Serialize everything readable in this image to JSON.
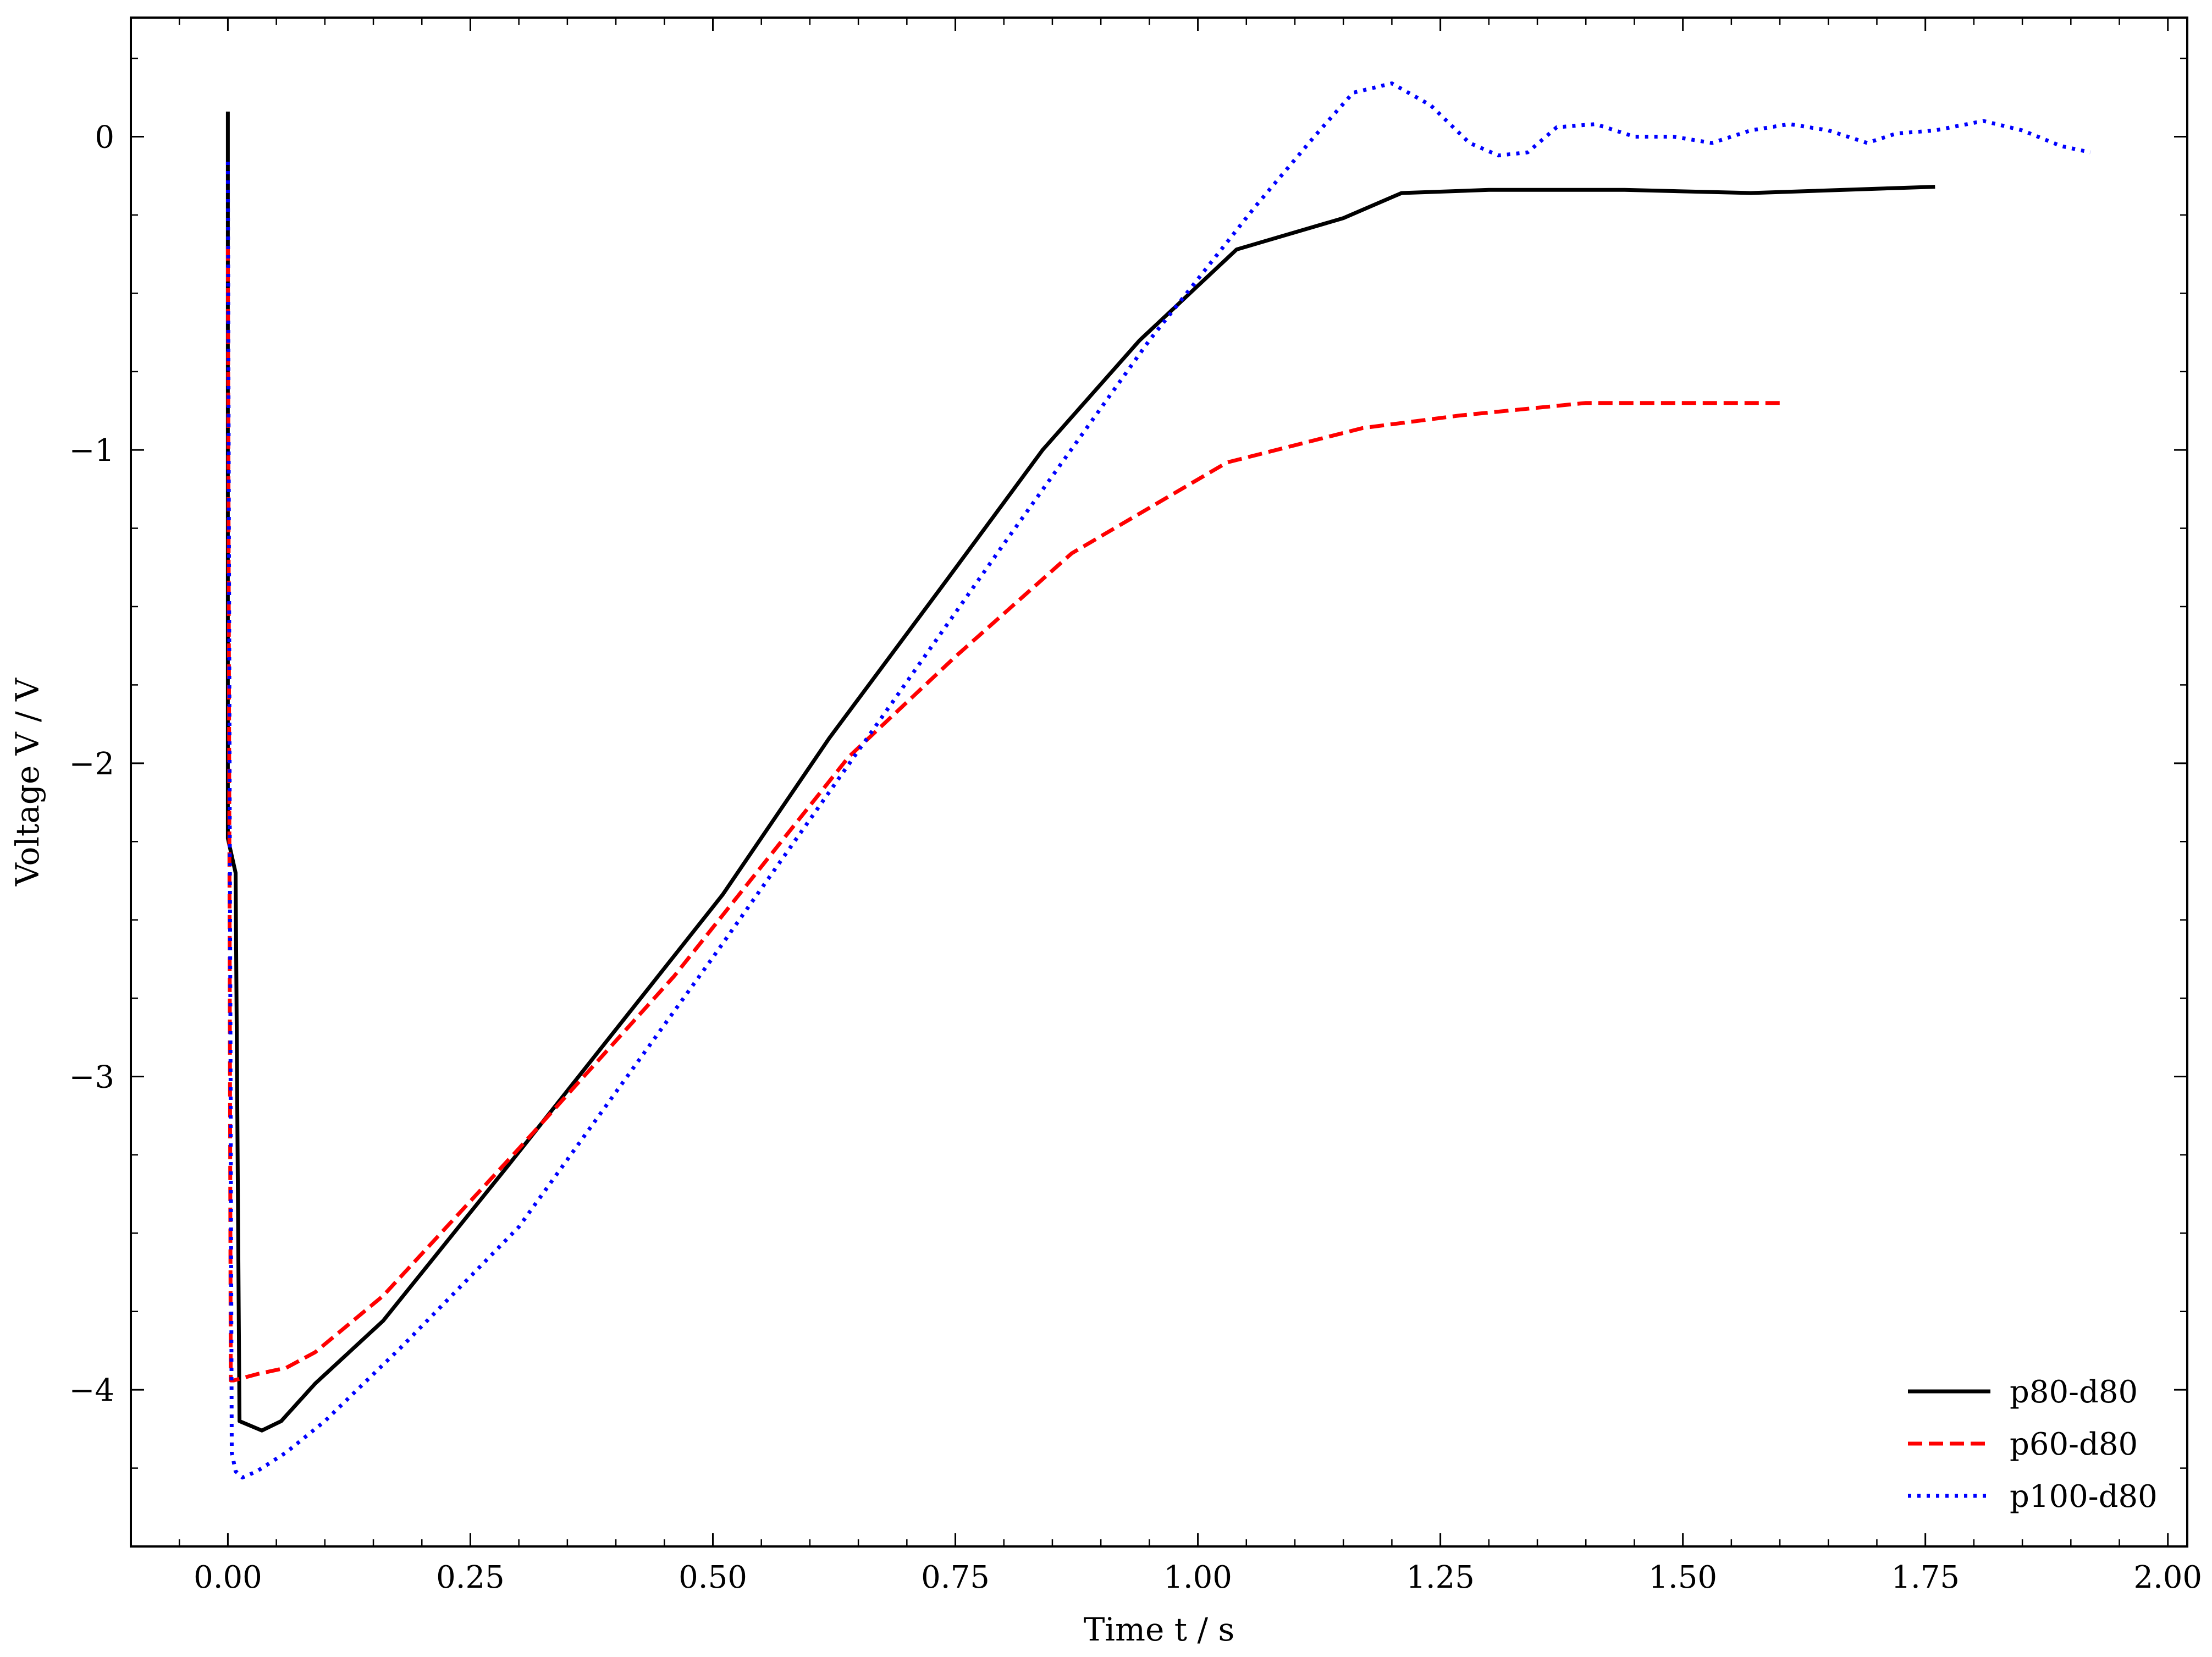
{
  "chart_data": {
    "type": "line",
    "xlabel": "Time t / s",
    "ylabel": "Voltage V / V",
    "xlim": [
      -0.1,
      2.02
    ],
    "ylim": [
      -4.5,
      0.38
    ],
    "xticks": [
      0.0,
      0.25,
      0.5,
      0.75,
      1.0,
      1.25,
      1.5,
      1.75,
      2.0
    ],
    "xtick_labels": [
      "0.00",
      "0.25",
      "0.50",
      "0.75",
      "1.00",
      "1.25",
      "1.50",
      "1.75",
      "2.00"
    ],
    "yticks": [
      0,
      -1,
      -2,
      -3,
      -4
    ],
    "ytick_labels": [
      "0",
      "−1",
      "−2",
      "−3",
      "−4"
    ],
    "grid": false,
    "legend_position": "bottom-right",
    "series": [
      {
        "name": "p80-d80",
        "color": "#000000",
        "dash": "solid",
        "x": [
          0.0,
          0.0,
          0.008,
          0.012,
          0.035,
          0.055,
          0.09,
          0.16,
          0.29,
          0.51,
          0.62,
          0.74,
          0.84,
          0.94,
          1.04,
          1.15,
          1.21,
          1.3,
          1.44,
          1.57,
          1.76
        ],
        "y": [
          0.08,
          -2.24,
          -2.35,
          -4.1,
          -4.13,
          -4.1,
          -3.98,
          -3.78,
          -3.28,
          -2.42,
          -1.92,
          -1.42,
          -1.0,
          -0.65,
          -0.36,
          -0.26,
          -0.18,
          -0.17,
          -0.17,
          -0.18,
          -0.16
        ]
      },
      {
        "name": "p60-d80",
        "color": "#ff0000",
        "dash": "dashed",
        "x": [
          0.0,
          0.003,
          0.006,
          0.03,
          0.06,
          0.09,
          0.16,
          0.3,
          0.46,
          0.64,
          0.75,
          0.87,
          1.03,
          1.17,
          1.27,
          1.4,
          1.5,
          1.6
        ],
        "y": [
          -0.35,
          -3.97,
          -3.97,
          -3.95,
          -3.93,
          -3.88,
          -3.7,
          -3.23,
          -2.68,
          -1.98,
          -1.66,
          -1.33,
          -1.04,
          -0.93,
          -0.89,
          -0.85,
          -0.85,
          -0.85
        ]
      },
      {
        "name": "p100-d80",
        "color": "#0000ff",
        "dash": "dotted",
        "x": [
          0.0,
          0.002,
          0.004,
          0.008,
          0.015,
          0.03,
          0.06,
          0.1,
          0.18,
          0.3,
          0.5,
          0.65,
          0.8,
          0.95,
          1.06,
          1.12,
          1.16,
          1.2,
          1.24,
          1.28,
          1.31,
          1.34,
          1.37,
          1.41,
          1.45,
          1.49,
          1.53,
          1.57,
          1.61,
          1.65,
          1.69,
          1.72,
          1.76,
          1.81,
          1.85,
          1.89,
          1.92
        ],
        "y": [
          -0.08,
          -2.2,
          -4.2,
          -4.26,
          -4.28,
          -4.26,
          -4.2,
          -4.1,
          -3.86,
          -3.48,
          -2.62,
          -1.96,
          -1.3,
          -0.65,
          -0.22,
          0.0,
          0.14,
          0.17,
          0.1,
          -0.02,
          -0.06,
          -0.05,
          0.03,
          0.04,
          0.0,
          0.0,
          -0.02,
          0.02,
          0.04,
          0.02,
          -0.02,
          0.01,
          0.02,
          0.05,
          0.02,
          -0.03,
          -0.05
        ]
      }
    ]
  }
}
